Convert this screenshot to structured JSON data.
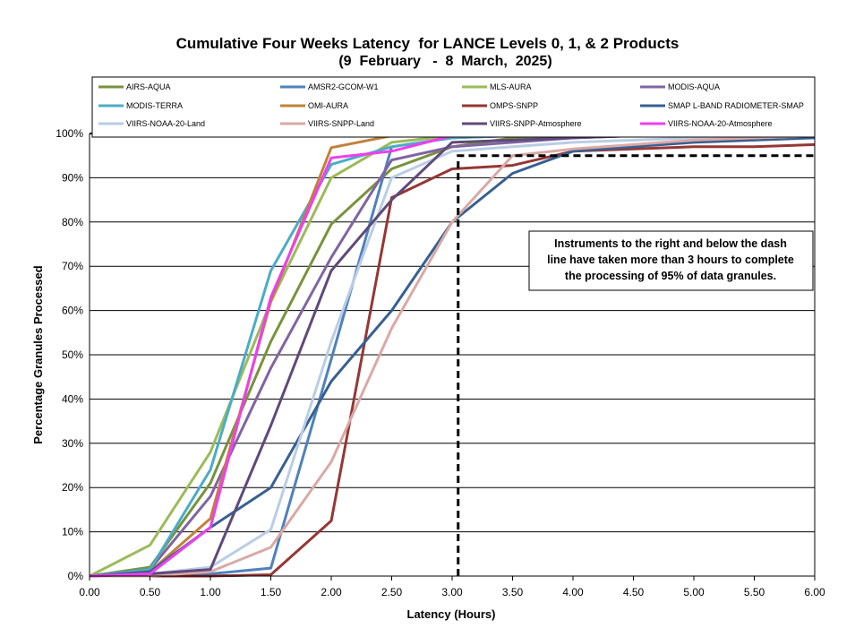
{
  "chart_data": {
    "type": "line",
    "title": "Cumulative Four Weeks Latency  for LANCE Levels 0, 1, & 2 Products",
    "subtitle": "(9  February   -  8  March,  2025)",
    "xlabel": "Latency (Hours)",
    "ylabel": "Percentage Granules Processed",
    "xlim": [
      0,
      6
    ],
    "ylim": [
      0,
      100
    ],
    "x_ticks": [
      "0.00",
      "0.50",
      "1.00",
      "1.50",
      "2.00",
      "2.50",
      "3.00",
      "3.50",
      "4.00",
      "4.50",
      "5.00",
      "5.50",
      "6.00"
    ],
    "y_ticks": [
      "0%",
      "10%",
      "20%",
      "30%",
      "40%",
      "50%",
      "60%",
      "70%",
      "80%",
      "90%",
      "100%"
    ],
    "grid": "horizontal",
    "legend_position": "top",
    "annotation": {
      "lines": [
        "Instruments to the right and below the dash",
        "line have taken more than 3 hours to complete",
        "the processing of 95% of data granules."
      ]
    },
    "threshold": {
      "x": 3.05,
      "y": 95
    },
    "series": [
      {
        "name": "AIRS-AQUA",
        "color": "#77933C",
        "x": [
          0,
          0.5,
          1,
          1.5,
          2,
          2.5,
          3,
          3.5,
          4,
          4.5,
          5,
          5.5,
          6
        ],
        "y": [
          0,
          2,
          21,
          53,
          79.5,
          92,
          97,
          99,
          99.5,
          100,
          100,
          100,
          100
        ]
      },
      {
        "name": "AMSR2-GCOM-W1",
        "color": "#4F81BD",
        "x": [
          0,
          0.5,
          1,
          1.5,
          2,
          2.5,
          3,
          3.5,
          4,
          4.5,
          5,
          5.5,
          6
        ],
        "y": [
          0,
          0,
          0.5,
          1.8,
          49,
          97,
          99,
          99.5,
          100,
          100,
          100,
          100,
          100
        ]
      },
      {
        "name": "MLS-AURA",
        "color": "#9BBB59",
        "x": [
          0,
          0.5,
          1,
          1.5,
          2,
          2.5,
          3,
          3.5,
          4,
          4.5,
          5,
          5.5,
          6
        ],
        "y": [
          0,
          7,
          28,
          62,
          90,
          98,
          99.5,
          100,
          100,
          100,
          100,
          100,
          100
        ]
      },
      {
        "name": "MODIS-AQUA",
        "color": "#8064A2",
        "x": [
          0,
          0.5,
          1,
          1.5,
          2,
          2.5,
          3,
          3.5,
          4,
          4.5,
          5,
          5.5,
          6
        ],
        "y": [
          0,
          1.5,
          18,
          47,
          72,
          94,
          97,
          98,
          99,
          99.5,
          100,
          100,
          100
        ]
      },
      {
        "name": "MODIS-TERRA",
        "color": "#4BACC6",
        "x": [
          0,
          0.5,
          1,
          1.5,
          2,
          2.5,
          3,
          3.5,
          4,
          4.5,
          5,
          5.5,
          6
        ],
        "y": [
          0,
          1.5,
          24,
          69,
          93,
          97,
          99,
          99.5,
          100,
          100,
          100,
          100,
          100
        ]
      },
      {
        "name": "OMI-AURA",
        "color": "#C0823A",
        "x": [
          0,
          0.5,
          1,
          1.5,
          2,
          2.5,
          3,
          3.5,
          4,
          4.5,
          5,
          5.5,
          6
        ],
        "y": [
          0,
          1,
          13,
          62,
          96.8,
          99.5,
          100,
          100,
          100,
          100,
          100,
          100,
          100
        ]
      },
      {
        "name": "OMPS-SNPP",
        "color": "#953735",
        "x": [
          0,
          0.5,
          1,
          1.5,
          2,
          2.5,
          3,
          3.5,
          4,
          4.5,
          5,
          5.5,
          6
        ],
        "y": [
          0,
          0,
          0,
          0.3,
          12.5,
          85.5,
          92,
          92.8,
          96,
          96.5,
          97,
          97,
          97.5
        ]
      },
      {
        "name": "SMAP L-BAND RADIOMETER-SMAP",
        "color": "#376092",
        "x": [
          0,
          0.5,
          1,
          1.5,
          2,
          2.5,
          3,
          3.5,
          4,
          4.5,
          5,
          5.5,
          6
        ],
        "y": [
          0,
          1,
          11,
          20,
          44,
          60,
          80,
          91,
          96,
          97,
          98,
          98.5,
          99
        ]
      },
      {
        "name": "VIIRS-NOAA-20-Land",
        "color": "#B9CDE5",
        "x": [
          0,
          0.5,
          1,
          1.5,
          2,
          2.5,
          3,
          3.5,
          4,
          4.5,
          5,
          5.5,
          6
        ],
        "y": [
          0,
          0.5,
          2,
          10.5,
          53,
          90,
          96,
          97,
          98,
          98.5,
          99,
          99,
          99.5
        ]
      },
      {
        "name": "VIIRS-SNPP-Land",
        "color": "#D9A9A5",
        "x": [
          0,
          0.5,
          1,
          1.5,
          2,
          2.5,
          3,
          3.5,
          4,
          4.5,
          5,
          5.5,
          6
        ],
        "y": [
          0,
          0,
          1,
          6.5,
          25.8,
          56,
          80,
          95,
          96.5,
          97.5,
          98.5,
          99,
          99.5
        ]
      },
      {
        "name": "VIIRS-SNPP-Atmosphere",
        "color": "#60497A",
        "x": [
          0,
          0.5,
          1,
          1.5,
          2,
          2.5,
          3,
          3.5,
          4,
          4.5,
          5,
          5.5,
          6
        ],
        "y": [
          0,
          0.5,
          1.5,
          34,
          69,
          85,
          98,
          98.5,
          99,
          99.5,
          100,
          100,
          100
        ]
      },
      {
        "name": "VIIRS-NOAA-20-Atmosphere",
        "color": "#EE3FEE",
        "x": [
          0,
          0.5,
          1,
          1.5,
          2,
          2.5,
          3,
          3.5,
          4,
          4.5,
          5,
          5.5,
          6
        ],
        "y": [
          0,
          0.5,
          11,
          63,
          94.5,
          96,
          99.5,
          100,
          100,
          100,
          100,
          100,
          100
        ]
      }
    ]
  }
}
